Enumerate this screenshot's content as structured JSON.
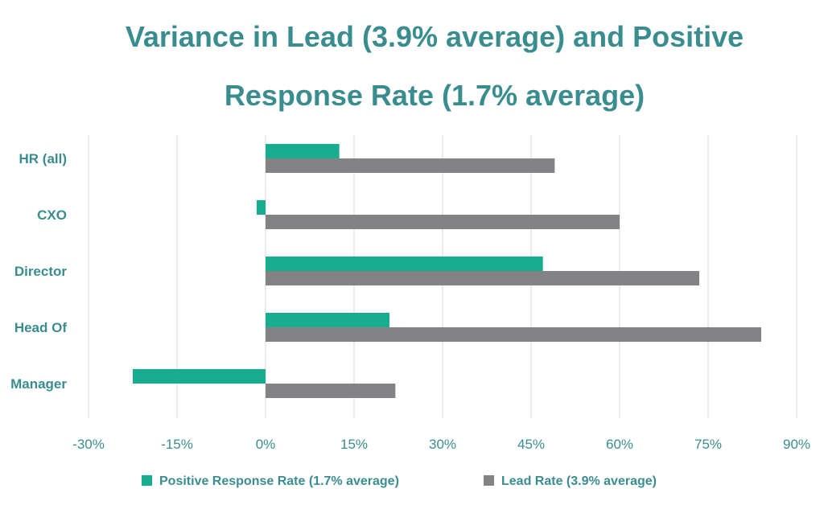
{
  "chart_data": {
    "type": "bar",
    "orientation": "horizontal",
    "title_lines": [
      "Variance in Lead (3.9% average) and Positive",
      "Response Rate (1.7% average)"
    ],
    "categories": [
      "HR (all)",
      "CXO",
      "Director",
      "Head Of",
      "Manager"
    ],
    "series": [
      {
        "name": "Positive Response Rate (1.7% average)",
        "color": "#17ad8e",
        "values": [
          12.5,
          -1.5,
          47,
          21,
          -22.5
        ]
      },
      {
        "name": "Lead Rate (3.9% average)",
        "color": "#838285",
        "values": [
          49,
          60,
          73.5,
          84,
          22
        ]
      }
    ],
    "xlim": [
      -30,
      90
    ],
    "xticks": [
      -30,
      -15,
      0,
      15,
      30,
      45,
      60,
      75,
      90
    ],
    "xtick_labels": [
      "-30%",
      "-15%",
      "0%",
      "15%",
      "30%",
      "45%",
      "60%",
      "75%",
      "90%"
    ],
    "grid": true,
    "legend_position": "bottom",
    "title_color": "#3a8d8f",
    "label_color": "#3a8d8f",
    "grid_color": "#d9d9d9"
  }
}
